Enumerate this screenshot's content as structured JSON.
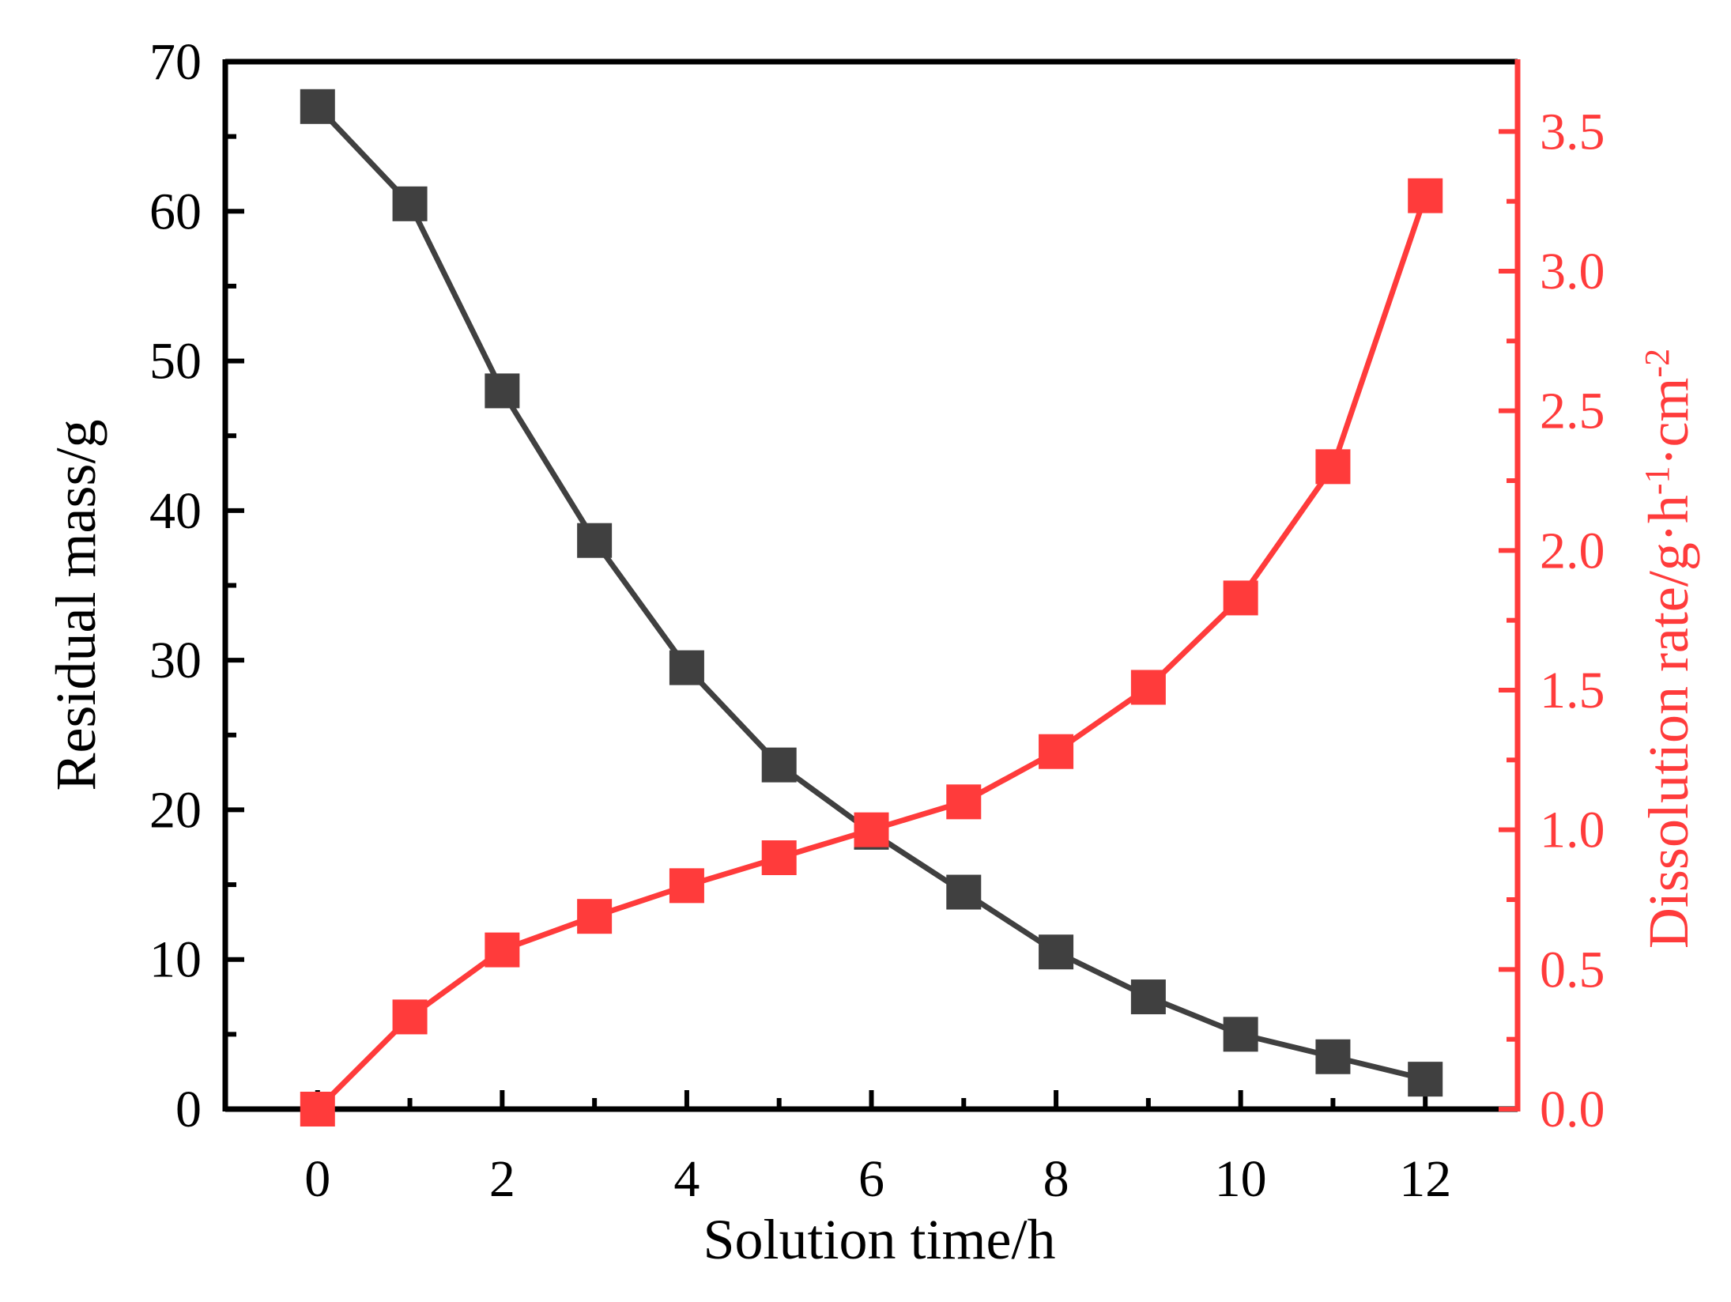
{
  "chart_data": {
    "type": "line",
    "xlabel": "Solution time/h",
    "ylabel_left": "Residual mass/g",
    "ylabel_right": {
      "prefix": "Dissolution rate/g·h",
      "sup1": "-1",
      "middle": "·cm",
      "sup2": "-2"
    },
    "xlim": [
      -1,
      13
    ],
    "ylim_left": [
      0,
      70
    ],
    "ylim_right": [
      0,
      3.75
    ],
    "xticks": [
      0,
      2,
      4,
      6,
      8,
      10,
      12
    ],
    "yticks_left": [
      0,
      10,
      20,
      30,
      40,
      50,
      60,
      70
    ],
    "yticks_right": [
      "0.0",
      "0.5",
      "1.0",
      "1.5",
      "2.0",
      "2.5",
      "3.0",
      "3.5"
    ],
    "grid": false,
    "x": [
      0,
      1,
      2,
      3,
      4,
      5,
      6,
      7,
      8,
      9,
      10,
      11,
      12
    ],
    "series": [
      {
        "axis": "left",
        "color": "#404040",
        "marker": "square",
        "values": [
          67,
          60.5,
          48,
          38,
          29.5,
          23,
          18.5,
          14.5,
          10.5,
          7.5,
          5,
          3.5,
          2
        ]
      },
      {
        "axis": "right",
        "color": "#ff3b3b",
        "marker": "square",
        "values": [
          0.0,
          0.33,
          0.57,
          0.69,
          0.8,
          0.9,
          1.0,
          1.1,
          1.28,
          1.51,
          1.83,
          2.3,
          3.27
        ]
      }
    ]
  }
}
